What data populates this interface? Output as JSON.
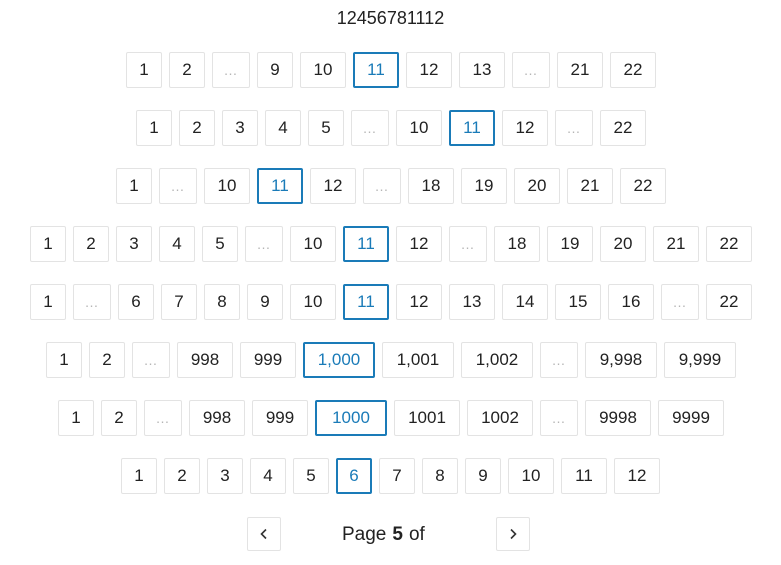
{
  "header": {
    "title": "12456781112"
  },
  "rows": [
    {
      "items": [
        {
          "t": "1"
        },
        {
          "t": "2"
        },
        {
          "t": "…",
          "gap": true
        },
        {
          "t": "9"
        },
        {
          "t": "10"
        },
        {
          "t": "11",
          "active": true
        },
        {
          "t": "12"
        },
        {
          "t": "13"
        },
        {
          "t": "…",
          "gap": true
        },
        {
          "t": "21"
        },
        {
          "t": "22"
        }
      ]
    },
    {
      "items": [
        {
          "t": "1"
        },
        {
          "t": "2"
        },
        {
          "t": "3"
        },
        {
          "t": "4"
        },
        {
          "t": "5"
        },
        {
          "t": "…",
          "gap": true
        },
        {
          "t": "10"
        },
        {
          "t": "11",
          "active": true
        },
        {
          "t": "12"
        },
        {
          "t": "…",
          "gap": true
        },
        {
          "t": "22"
        }
      ]
    },
    {
      "items": [
        {
          "t": "1"
        },
        {
          "t": "…",
          "gap": true
        },
        {
          "t": "10"
        },
        {
          "t": "11",
          "active": true
        },
        {
          "t": "12"
        },
        {
          "t": "…",
          "gap": true
        },
        {
          "t": "18"
        },
        {
          "t": "19"
        },
        {
          "t": "20"
        },
        {
          "t": "21"
        },
        {
          "t": "22"
        }
      ]
    },
    {
      "items": [
        {
          "t": "1"
        },
        {
          "t": "2"
        },
        {
          "t": "3"
        },
        {
          "t": "4"
        },
        {
          "t": "5"
        },
        {
          "t": "…",
          "gap": true
        },
        {
          "t": "10"
        },
        {
          "t": "11",
          "active": true
        },
        {
          "t": "12"
        },
        {
          "t": "…",
          "gap": true
        },
        {
          "t": "18"
        },
        {
          "t": "19"
        },
        {
          "t": "20"
        },
        {
          "t": "21"
        },
        {
          "t": "22"
        }
      ]
    },
    {
      "items": [
        {
          "t": "1"
        },
        {
          "t": "…",
          "gap": true
        },
        {
          "t": "6"
        },
        {
          "t": "7"
        },
        {
          "t": "8"
        },
        {
          "t": "9"
        },
        {
          "t": "10"
        },
        {
          "t": "11",
          "active": true
        },
        {
          "t": "12"
        },
        {
          "t": "13"
        },
        {
          "t": "14"
        },
        {
          "t": "15"
        },
        {
          "t": "16"
        },
        {
          "t": "…",
          "gap": true
        },
        {
          "t": "22"
        }
      ]
    },
    {
      "items": [
        {
          "t": "1"
        },
        {
          "t": "2"
        },
        {
          "t": "…",
          "gap": true
        },
        {
          "t": "998"
        },
        {
          "t": "999"
        },
        {
          "t": "1,000",
          "active": true
        },
        {
          "t": "1,001"
        },
        {
          "t": "1,002"
        },
        {
          "t": "…",
          "gap": true
        },
        {
          "t": "9,998"
        },
        {
          "t": "9,999"
        }
      ]
    },
    {
      "items": [
        {
          "t": "1"
        },
        {
          "t": "2"
        },
        {
          "t": "…",
          "gap": true
        },
        {
          "t": "998"
        },
        {
          "t": "999"
        },
        {
          "t": "1000",
          "active": true
        },
        {
          "t": "1001"
        },
        {
          "t": "1002"
        },
        {
          "t": "…",
          "gap": true
        },
        {
          "t": "9998"
        },
        {
          "t": "9999"
        }
      ]
    },
    {
      "items": [
        {
          "t": "1"
        },
        {
          "t": "2"
        },
        {
          "t": "3"
        },
        {
          "t": "4"
        },
        {
          "t": "5"
        },
        {
          "t": "6",
          "active": true
        },
        {
          "t": "7"
        },
        {
          "t": "8"
        },
        {
          "t": "9"
        },
        {
          "t": "10"
        },
        {
          "t": "11"
        },
        {
          "t": "12"
        }
      ]
    }
  ],
  "pager": {
    "prev_icon": "chevron-left-icon",
    "next_icon": "chevron-right-icon",
    "page_label": "Page",
    "current": "5",
    "of_label": "of"
  },
  "colors": {
    "accent": "#1a7bb8",
    "border": "#e3e3e3",
    "ellipsis": "#b5b5b5"
  }
}
